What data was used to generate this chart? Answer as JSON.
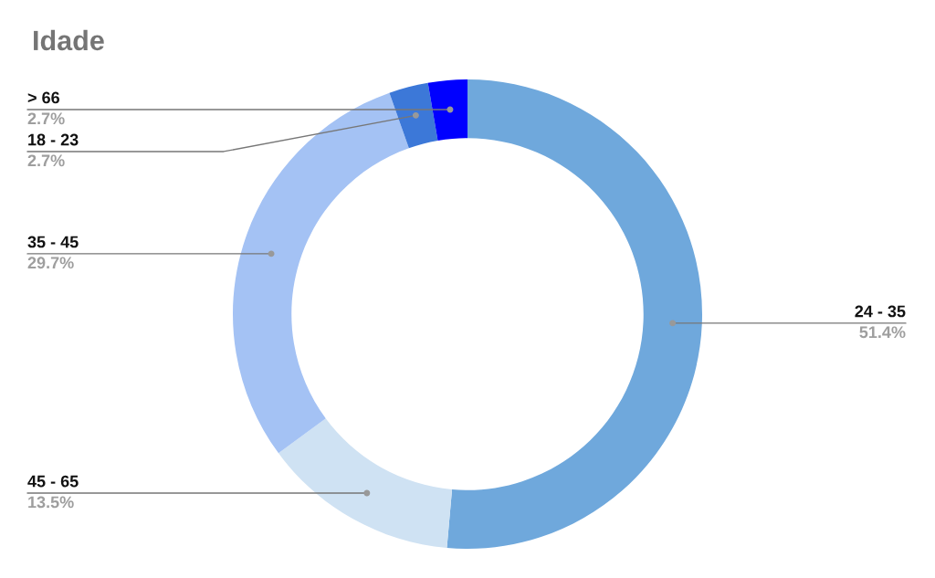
{
  "chart_data": {
    "type": "donut",
    "title": "Idade",
    "categories": [
      "24 - 35",
      "45 - 65",
      "35 - 45",
      "18 - 23",
      "> 66"
    ],
    "values": [
      51.4,
      13.5,
      29.7,
      2.7,
      2.7
    ],
    "colors": [
      "#6fa8dc",
      "#cfe2f3",
      "#a4c2f4",
      "#3c78d8",
      "#0000ff"
    ],
    "value_labels": [
      "51.4%",
      "13.5%",
      "29.7%",
      "2.7%",
      "2.7%"
    ]
  }
}
